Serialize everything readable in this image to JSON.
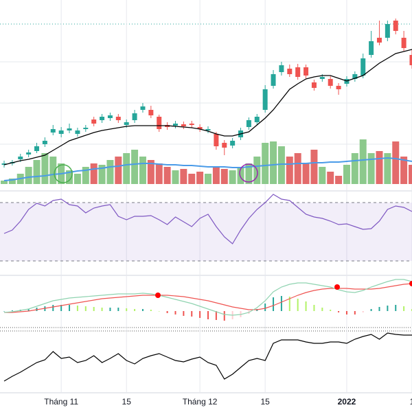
{
  "chart_data": [
    {
      "type": "candlestick",
      "open": [
        60,
        62,
        68,
        75,
        80,
        90,
        107,
        105,
        110,
        105,
        112,
        126,
        125,
        128,
        130,
        118,
        125,
        140,
        140,
        130,
        118,
        117,
        119,
        120,
        115,
        110,
        105,
        92,
        88,
        100,
        115,
        122,
        140,
        175,
        195,
        200,
        202,
        202,
        180,
        185,
        185,
        175,
        178,
        185,
        190,
        220,
        245,
        245,
        270,
        245,
        220
      ],
      "high": [
        66,
        67,
        76,
        82,
        92,
        100,
        118,
        115,
        120,
        114,
        118,
        130,
        134,
        136,
        134,
        126,
        140,
        150,
        146,
        133,
        122,
        124,
        123,
        124,
        119,
        116,
        108,
        96,
        99,
        114,
        129,
        134,
        176,
        198,
        210,
        206,
        207,
        206,
        184,
        192,
        189,
        179,
        189,
        196,
        222,
        255,
        270,
        270,
        273,
        255,
        228
      ],
      "low": [
        56,
        59,
        64,
        71,
        77,
        86,
        103,
        100,
        106,
        101,
        108,
        116,
        121,
        124,
        121,
        114,
        121,
        136,
        128,
        108,
        111,
        113,
        112,
        114,
        108,
        106,
        82,
        74,
        84,
        96,
        111,
        118,
        136,
        171,
        190,
        188,
        184,
        186,
        168,
        181,
        171,
        162,
        174,
        181,
        186,
        216,
        234,
        240,
        250,
        226,
        200
      ],
      "close": [
        62,
        64,
        72,
        78,
        87,
        95,
        112,
        110,
        113,
        110,
        114,
        120,
        130,
        132,
        125,
        122,
        135,
        145,
        132,
        112,
        115,
        120,
        116,
        118,
        112,
        112,
        87,
        85,
        95,
        110,
        125,
        130,
        170,
        192,
        205,
        192,
        188,
        190,
        172,
        188,
        175,
        170,
        185,
        192,
        215,
        240,
        238,
        265,
        255,
        230,
        205
      ],
      "ylim": [
        30,
        300
      ],
      "up_color": "#26a69a",
      "down_color": "#ef5350",
      "ma": {
        "color": "#000000",
        "values": [
          60,
          63,
          66,
          68,
          71,
          74,
          81,
          88,
          95,
          99,
          103,
          107,
          110,
          112,
          114,
          116,
          117,
          117,
          117,
          117,
          117,
          116,
          115,
          114,
          112,
          109,
          105,
          102,
          102,
          105,
          108,
          118,
          128,
          140,
          155,
          170,
          178,
          185,
          188,
          190,
          190,
          186,
          182,
          186,
          190,
          199,
          208,
          215,
          222,
          225,
          228
        ]
      },
      "volume": {
        "ylim": [
          0,
          80
        ],
        "up_color": "#8cc98c",
        "down_color": "#e36b6b",
        "values": [
          5,
          8,
          15,
          25,
          35,
          45,
          40,
          30,
          20,
          15,
          25,
          30,
          28,
          35,
          40,
          45,
          50,
          40,
          35,
          30,
          25,
          20,
          22,
          15,
          18,
          15,
          25,
          22,
          20,
          25,
          30,
          40,
          60,
          62,
          55,
          40,
          45,
          30,
          50,
          25,
          18,
          12,
          28,
          45,
          65,
          45,
          48,
          45,
          62,
          40,
          28
        ],
        "ma": {
          "color": "#4a9be8",
          "values": [
            5,
            6,
            8,
            10,
            11,
            12,
            14,
            15,
            17,
            19,
            20,
            22,
            23,
            25,
            26,
            28,
            29,
            30,
            30,
            29,
            28,
            28,
            27,
            27,
            26,
            25,
            25,
            25,
            24,
            24,
            25,
            26,
            27,
            28,
            29,
            29,
            30,
            30,
            31,
            31,
            32,
            32,
            33,
            34,
            35,
            36,
            37,
            38,
            37,
            35,
            33
          ]
        }
      }
    },
    {
      "type": "line",
      "color": "#7e57c2",
      "ylim": [
        0,
        120
      ],
      "levels": [
        20,
        105
      ],
      "values": [
        60,
        65,
        78,
        95,
        104,
        100,
        108,
        110,
        102,
        100,
        90,
        97,
        100,
        102,
        85,
        80,
        85,
        85,
        86,
        80,
        73,
        84,
        77,
        70,
        82,
        88,
        70,
        55,
        45,
        65,
        82,
        95,
        105,
        117,
        110,
        108,
        98,
        88,
        84,
        82,
        78,
        73,
        74,
        70,
        66,
        67,
        78,
        95,
        100,
        98,
        92
      ]
    },
    {
      "type": "macd",
      "ylim": [
        -20,
        50
      ],
      "macd": {
        "color": "#8fd3b0",
        "values": [
          -2,
          -1,
          1,
          3,
          7,
          11,
          15,
          17,
          19,
          20,
          21,
          22,
          23,
          24,
          25,
          25,
          25,
          26,
          25,
          23,
          20,
          17,
          14,
          11,
          7,
          3,
          -1,
          -5,
          -6,
          -5,
          -2,
          5,
          15,
          28,
          35,
          39,
          41,
          41,
          39,
          37,
          35,
          31,
          28,
          27,
          30,
          35,
          39,
          43,
          46,
          46,
          43
        ]
      },
      "signal": {
        "color": "#ef5350",
        "values": [
          -2,
          -2,
          -1,
          0,
          2,
          4,
          6,
          8,
          10,
          12,
          14,
          16,
          18,
          19,
          20,
          21,
          22,
          23,
          23,
          23,
          23,
          22,
          21,
          19,
          17,
          15,
          12,
          9,
          6,
          4,
          2,
          2,
          4,
          8,
          13,
          18,
          23,
          27,
          30,
          32,
          33,
          33,
          33,
          32,
          32,
          32,
          33,
          35,
          37,
          39,
          40
        ]
      },
      "histogram": [
        0,
        1,
        2,
        3,
        5,
        7,
        9,
        9,
        9,
        8,
        7,
        6,
        5,
        5,
        5,
        4,
        3,
        3,
        2,
        0,
        -3,
        -5,
        -7,
        -8,
        -10,
        -12,
        -13,
        -14,
        -12,
        -9,
        -4,
        3,
        11,
        20,
        22,
        21,
        18,
        14,
        9,
        5,
        2,
        -2,
        -5,
        -5,
        -2,
        3,
        6,
        8,
        9,
        7,
        3
      ]
    },
    {
      "type": "line",
      "color": "#000000",
      "ylim": [
        0,
        95
      ],
      "values": [
        15,
        22,
        28,
        35,
        42,
        46,
        58,
        48,
        50,
        42,
        45,
        52,
        42,
        48,
        55,
        45,
        40,
        48,
        52,
        55,
        50,
        45,
        43,
        47,
        50,
        42,
        38,
        18,
        25,
        35,
        45,
        48,
        45,
        70,
        75,
        75,
        75,
        72,
        70,
        70,
        72,
        72,
        70,
        76,
        80,
        83,
        76,
        85,
        83,
        82,
        82
      ],
      "categories": [
        null,
        null,
        null,
        null,
        null,
        null,
        null,
        "Tháng 11",
        null,
        null,
        null,
        null,
        null,
        null,
        null,
        "15",
        null,
        null,
        null,
        null,
        null,
        null,
        null,
        null,
        "Tháng 12",
        null,
        null,
        null,
        null,
        null,
        null,
        null,
        "15",
        null,
        null,
        null,
        null,
        null,
        null,
        null,
        null,
        null,
        "2022",
        null,
        null,
        null,
        null,
        null,
        null,
        null,
        "1"
      ]
    }
  ]
}
